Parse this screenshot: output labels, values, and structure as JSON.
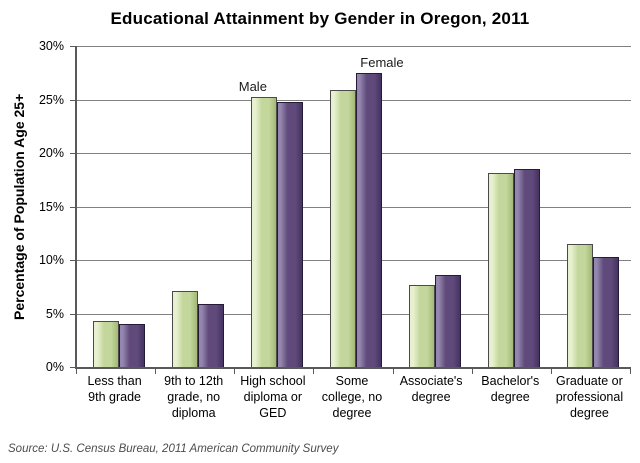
{
  "title": "Educational Attainment by Gender in Oregon, 2011",
  "y_axis_title": "Percentage of Population Age 25+",
  "source_note": "Source: U.S. Census Bureau, 2011 American Community Survey",
  "colors": {
    "male_fill": "#c3d69b",
    "male_highlight": "#e7f0cf",
    "male_shade": "#a3b877",
    "male_border": "#4a4a4a",
    "female_fill": "#604a7b",
    "female_highlight": "#9486ae",
    "female_shade": "#453361",
    "female_border": "#241b38",
    "gridline": "#808080",
    "axis": "#595959",
    "source_text": "#4d4d4d"
  },
  "chart_data": {
    "type": "bar",
    "title": "Educational Attainment by Gender in Oregon, 2011",
    "xlabel": "",
    "ylabel": "Percentage of Population Age 25+",
    "ylim": [
      0,
      30
    ],
    "ytick_values": [
      0,
      5,
      10,
      15,
      20,
      25,
      30
    ],
    "ytick_labels": [
      "0%",
      "5%",
      "10%",
      "15%",
      "20%",
      "25%",
      "30%"
    ],
    "grid": true,
    "legend_position": "none",
    "categories": [
      "Less than 9th grade",
      "9th to 12th grade, no diploma",
      "High school diploma or GED",
      "Some college, no degree",
      "Associate's degree",
      "Bachelor's degree",
      "Graduate or professional degree"
    ],
    "series": [
      {
        "name": "Male",
        "color": "#c3d69b",
        "values": [
          4.3,
          7.1,
          25.2,
          25.9,
          7.7,
          18.1,
          11.5
        ]
      },
      {
        "name": "Female",
        "color": "#604a7b",
        "values": [
          4.0,
          5.9,
          24.8,
          27.5,
          8.6,
          18.5,
          10.3
        ]
      }
    ],
    "annotations": [
      {
        "text": "Male",
        "category_index": 2,
        "series_index": 0
      },
      {
        "text": "Female",
        "category_index": 3,
        "series_index": 1
      }
    ],
    "source": "Source: U.S. Census Bureau, 2011 American Community Survey"
  }
}
